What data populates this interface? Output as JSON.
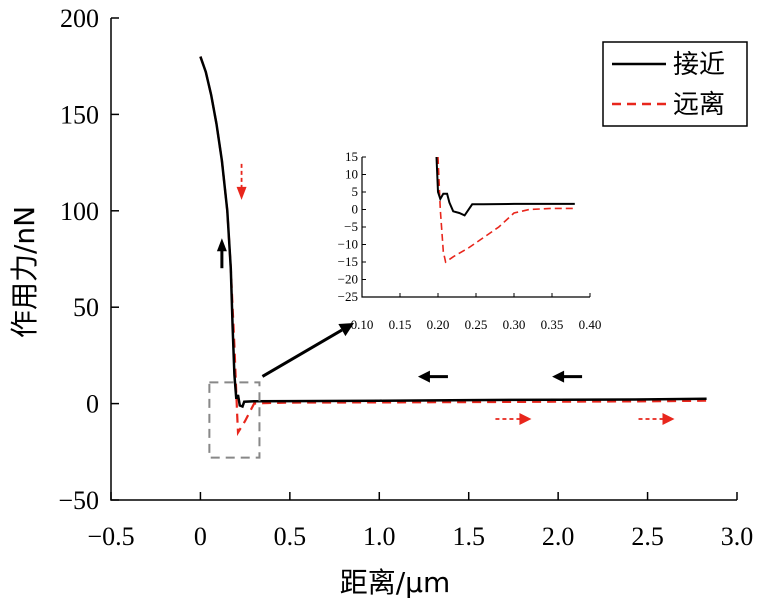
{
  "chart_data": {
    "type": "line",
    "xlabel": "距离/μm",
    "ylabel": "作用力/nN",
    "xlim": [
      -0.5,
      3.0
    ],
    "ylim": [
      -50,
      200
    ],
    "x_ticks": [
      "−0.5",
      "0",
      "0.5",
      "1.0",
      "1.5",
      "2.0",
      "2.5",
      "3.0"
    ],
    "y_ticks": [
      "−50",
      "0",
      "50",
      "100",
      "150",
      "200"
    ],
    "legend_position": "top-right",
    "series": [
      {
        "name": "接近",
        "color": "#000000",
        "style": "solid",
        "x": [
          0.0,
          0.03,
          0.06,
          0.09,
          0.12,
          0.15,
          0.17,
          0.18,
          0.19,
          0.2,
          0.205,
          0.21,
          0.22,
          0.235,
          0.245,
          0.3,
          0.5,
          1.0,
          1.5,
          2.0,
          2.5,
          2.83
        ],
        "y": [
          180,
          172,
          160,
          145,
          126,
          100,
          70,
          40,
          15,
          3,
          3,
          4.5,
          -1,
          -1.5,
          1,
          1.2,
          1.3,
          1.5,
          1.8,
          2.0,
          2.2,
          2.5
        ]
      },
      {
        "name": "远离",
        "color": "#e8261c",
        "style": "dashed",
        "x": [
          0.0,
          0.03,
          0.06,
          0.09,
          0.12,
          0.15,
          0.17,
          0.19,
          0.205,
          0.21,
          0.25,
          0.3,
          0.35,
          0.38,
          0.5,
          1.0,
          1.5,
          2.0,
          2.5,
          2.83
        ],
        "y": [
          180,
          172,
          160,
          145,
          126,
          100,
          70,
          30,
          -5,
          -15,
          -9,
          0,
          0.2,
          0.3,
          0.5,
          0.6,
          0.8,
          1.0,
          1.2,
          1.5
        ]
      }
    ],
    "inset": {
      "xlim": [
        0.1,
        0.4
      ],
      "ylim": [
        -25,
        15
      ],
      "x_ticks": [
        "0.10",
        "0.15",
        "0.20",
        "0.25",
        "0.30",
        "0.35",
        "0.40"
      ],
      "y_ticks": [
        "15",
        "10",
        "5",
        "0",
        "−5",
        "−10",
        "−15",
        "−20",
        "−25"
      ],
      "series": [
        {
          "name": "接近",
          "x": [
            0.198,
            0.2,
            0.203,
            0.207,
            0.212,
            0.215,
            0.22,
            0.228,
            0.235,
            0.245,
            0.26,
            0.3,
            0.35,
            0.38
          ],
          "y": [
            16,
            5,
            3,
            4.5,
            4.5,
            2,
            -0.5,
            -1,
            -1.7,
            1.5,
            1.5,
            1.6,
            1.6,
            1.6
          ]
        },
        {
          "name": "远离",
          "x": [
            0.2,
            0.203,
            0.207,
            0.21,
            0.22,
            0.24,
            0.26,
            0.28,
            0.3,
            0.32,
            0.35,
            0.38
          ],
          "y": [
            16,
            0,
            -12,
            -15,
            -13.5,
            -11,
            -8,
            -5,
            -1,
            0,
            0.3,
            0.3
          ]
        }
      ]
    },
    "direction_arrows": [
      {
        "series": "接近",
        "color": "#000000",
        "direction": "up",
        "x": 0.12,
        "y": 78
      },
      {
        "series": "接近",
        "color": "#000000",
        "direction": "left",
        "x": 1.3,
        "y": 14
      },
      {
        "series": "接近",
        "color": "#000000",
        "direction": "left",
        "x": 2.05,
        "y": 14
      },
      {
        "series": "远离",
        "color": "#e8261c",
        "direction": "down",
        "x": 0.23,
        "y": 115
      },
      {
        "series": "远离",
        "color": "#e8261c",
        "direction": "right",
        "x": 1.75,
        "y": -8
      },
      {
        "series": "远离",
        "color": "#e8261c",
        "direction": "right",
        "x": 2.55,
        "y": -8
      }
    ],
    "zoom_region": {
      "x": [
        0.05,
        0.33
      ],
      "y": [
        -28,
        11
      ]
    }
  }
}
